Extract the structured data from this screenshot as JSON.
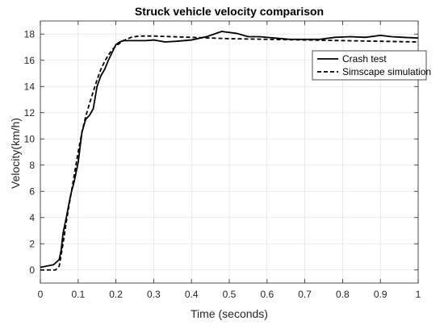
{
  "chart_data": {
    "type": "line",
    "title": "Struck vehicle velocity comparison",
    "xlabel": "Time (seconds)",
    "ylabel": "Velocity(km/h)",
    "xlim": [
      0,
      1
    ],
    "ylim": [
      -1,
      19
    ],
    "xticks": [
      0,
      0.1,
      0.2,
      0.3,
      0.4,
      0.5,
      0.6,
      0.7,
      0.8,
      0.9,
      1
    ],
    "xtick_labels": [
      "0",
      "0.1",
      "0.2",
      "0.3",
      "0.4",
      "0.5",
      "0.6",
      "0.7",
      "0.8",
      "0.9",
      "1"
    ],
    "yticks": [
      0,
      2,
      4,
      6,
      8,
      10,
      12,
      14,
      16,
      18
    ],
    "ytick_labels": [
      "0",
      "2",
      "4",
      "6",
      "8",
      "10",
      "12",
      "14",
      "16",
      "18"
    ],
    "grid": true,
    "legend_position": "top-right",
    "series": [
      {
        "name": "Crash test",
        "style": "solid",
        "color": "#000000",
        "x": [
          0,
          0.035,
          0.05,
          0.055,
          0.06,
          0.065,
          0.07,
          0.08,
          0.09,
          0.1,
          0.11,
          0.12,
          0.13,
          0.14,
          0.15,
          0.16,
          0.17,
          0.18,
          0.19,
          0.2,
          0.21,
          0.22,
          0.24,
          0.26,
          0.28,
          0.3,
          0.33,
          0.36,
          0.4,
          0.44,
          0.48,
          0.52,
          0.55,
          0.58,
          0.62,
          0.66,
          0.7,
          0.74,
          0.78,
          0.82,
          0.86,
          0.9,
          0.93,
          0.96,
          1.0
        ],
        "y": [
          0.2,
          0.4,
          0.8,
          1.5,
          2.8,
          3.5,
          4.2,
          5.7,
          6.8,
          8.2,
          10.5,
          11.5,
          11.8,
          12.3,
          14.0,
          14.8,
          15.3,
          16.0,
          16.6,
          17.2,
          17.4,
          17.5,
          17.5,
          17.5,
          17.5,
          17.55,
          17.4,
          17.45,
          17.55,
          17.8,
          18.2,
          18.05,
          17.8,
          17.8,
          17.7,
          17.6,
          17.6,
          17.6,
          17.75,
          17.8,
          17.75,
          17.9,
          17.8,
          17.75,
          17.7
        ]
      },
      {
        "name": "Simscape simulation",
        "style": "dashed",
        "color": "#000000",
        "x": [
          0,
          0.04,
          0.05,
          0.06,
          0.07,
          0.08,
          0.09,
          0.1,
          0.11,
          0.12,
          0.13,
          0.14,
          0.15,
          0.16,
          0.17,
          0.18,
          0.19,
          0.2,
          0.21,
          0.22,
          0.24,
          0.26,
          0.28,
          0.3,
          0.35,
          0.4,
          0.45,
          0.5,
          0.6,
          0.7,
          0.8,
          0.9,
          1.0
        ],
        "y": [
          0,
          0,
          0.3,
          2.0,
          3.9,
          5.6,
          7.3,
          9.0,
          10.5,
          11.7,
          12.7,
          13.6,
          14.5,
          15.3,
          15.9,
          16.4,
          16.8,
          17.1,
          17.3,
          17.5,
          17.75,
          17.85,
          17.85,
          17.85,
          17.8,
          17.75,
          17.7,
          17.65,
          17.6,
          17.55,
          17.5,
          17.45,
          17.4
        ]
      }
    ]
  }
}
